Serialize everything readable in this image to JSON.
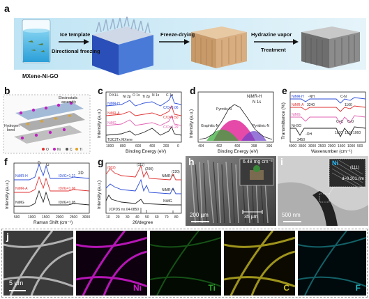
{
  "panel_a": {
    "label": "a",
    "steps": [
      "Ice template",
      "Directional freezing",
      "Freeze-drying",
      "Hydrazine vapor",
      "Treatment"
    ],
    "material": "MXene-Ni-GO"
  },
  "panel_b": {
    "label": "b",
    "notes": [
      "Electrostatic",
      "assembly",
      "Hydrogen",
      "bond"
    ],
    "legend": [
      "O",
      "Ni",
      "C",
      "Ti"
    ]
  },
  "panel_c": {
    "label": "c",
    "series_labels": [
      "NiMR-H",
      "NiMR-A",
      "NiMG",
      "Ti3C2Tx MXene"
    ],
    "ratios": [
      "C/O=3.06",
      "C/O=4.50",
      "C/O=1.29"
    ],
    "peaks": [
      "O KLL",
      "Ni 2p",
      "O 1s",
      "Ti 2p",
      "N 1s",
      "C 1s"
    ],
    "xlabel": "Binding Energy (eV)",
    "ylabel": "Intensity (a.u.)",
    "xticks": [
      "1000",
      "800",
      "600",
      "400",
      "200",
      "0"
    ]
  },
  "panel_d": {
    "label": "d",
    "title": "NiMR-H",
    "subtitle": "N 1s",
    "peaks": [
      "Pyrrolic-N",
      "Pyridinic-N",
      "Graphitic-N"
    ],
    "xlabel": "Binding Energy (eV)",
    "ylabel": "Intensity (a.u.)",
    "xticks": [
      "404",
      "402",
      "400",
      "398",
      "396"
    ]
  },
  "panel_e": {
    "label": "e",
    "series_labels": [
      "NiMR-H",
      "NiMR-A",
      "NiMG",
      "Ni-GO"
    ],
    "peaks": [
      "-NH",
      "3240",
      "C-N",
      "1160",
      "C=C",
      "C-O",
      "1630",
      "1210",
      "1060",
      "-OH",
      "3450"
    ],
    "xlabel": "Wavenumber (cm⁻¹)",
    "ylabel": "Transmittance (%)",
    "xticks": [
      "4000",
      "3500",
      "3000",
      "2500",
      "2000",
      "1500",
      "1000",
      "500"
    ]
  },
  "panel_f": {
    "label": "f",
    "series_labels": [
      "NiMR-H",
      "NiMR-A",
      "NiMG"
    ],
    "ratios": [
      "ID/IG=1.21",
      "ID/IG=1.06",
      "ID/IG=1.05"
    ],
    "bands": [
      "D",
      "G",
      "2D"
    ],
    "xlabel": "Raman Shift (cm⁻¹)",
    "ylabel": "Intensity (a.u.)",
    "xticks": [
      "500",
      "1000",
      "1500",
      "2000",
      "2500",
      "3000"
    ]
  },
  "panel_g": {
    "label": "g",
    "series_labels": [
      "NiMR-H",
      "NiMR-A",
      "NiMG"
    ],
    "peaks": [
      "(002)",
      "(111)",
      "(200)",
      "(220)"
    ],
    "reference": "JCPDS no.04-0850",
    "xlabel": "2θ/degree",
    "ylabel": "Intensity (a.u.)",
    "xticks": [
      "10",
      "20",
      "30",
      "40",
      "50",
      "60",
      "70",
      "80"
    ]
  },
  "panel_h": {
    "label": "h",
    "inset": "6.48 mg cm⁻³",
    "scale_bar": "200 µm",
    "gap": "35 µm"
  },
  "panel_i": {
    "label": "i",
    "element": "Ni",
    "plane": "(111)",
    "spacing": "d=0.201 nm",
    "scale_bar": "500 nm"
  },
  "panel_j": {
    "label": "j",
    "scale_bar": "5 µm",
    "maps": [
      {
        "element": "Ni",
        "color": "#d21ad2"
      },
      {
        "element": "Ti",
        "color": "#2fa82f"
      },
      {
        "element": "C",
        "color": "#cfc226"
      },
      {
        "element": "F",
        "color": "#26b8c4"
      }
    ]
  },
  "colors": {
    "nimr_h": "#2a4bd8",
    "nimr_a": "#e03030",
    "nimg": "#222222",
    "pink": "#e02a9a",
    "banner": "#cfeaf6"
  }
}
